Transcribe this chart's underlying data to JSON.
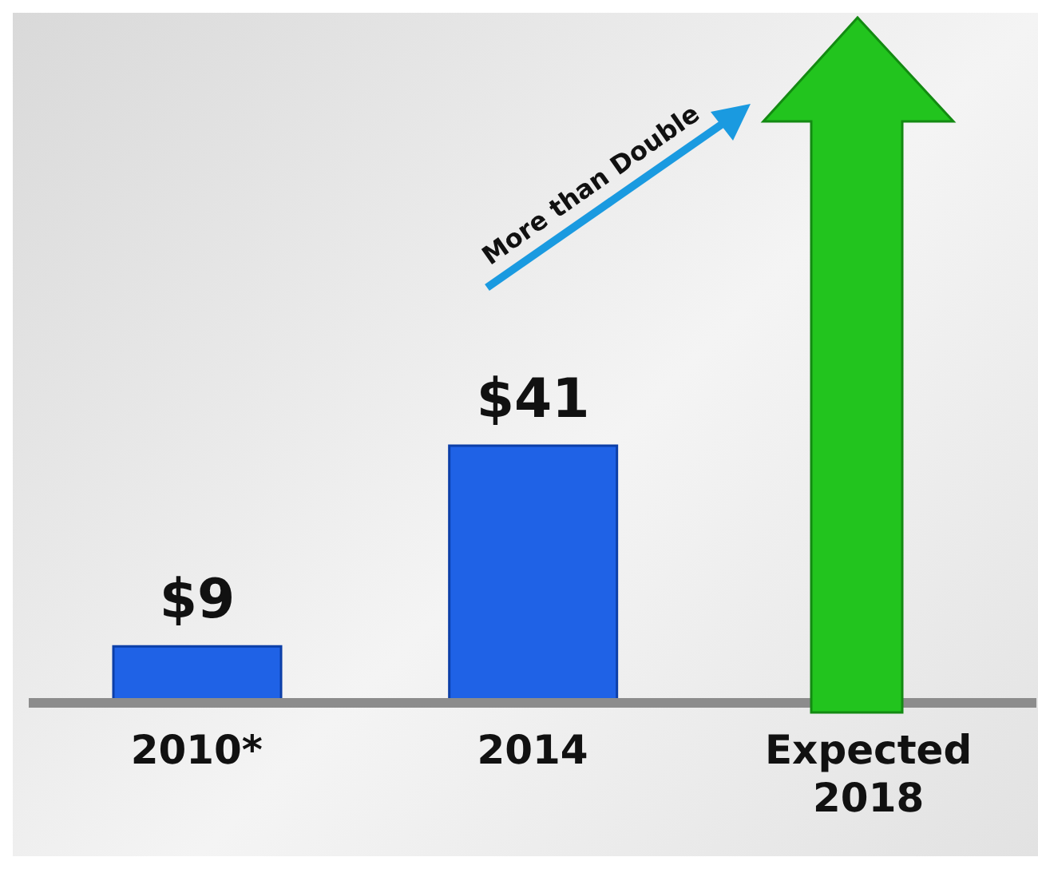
{
  "chart_data": {
    "type": "bar",
    "categories": [
      "2010*",
      "2014",
      "Expected 2018"
    ],
    "values": [
      9,
      41,
      null
    ],
    "value_labels": [
      "$9",
      "$41",
      null
    ],
    "color": "#1f62e6",
    "annotations": [
      "More than Double"
    ]
  }
}
